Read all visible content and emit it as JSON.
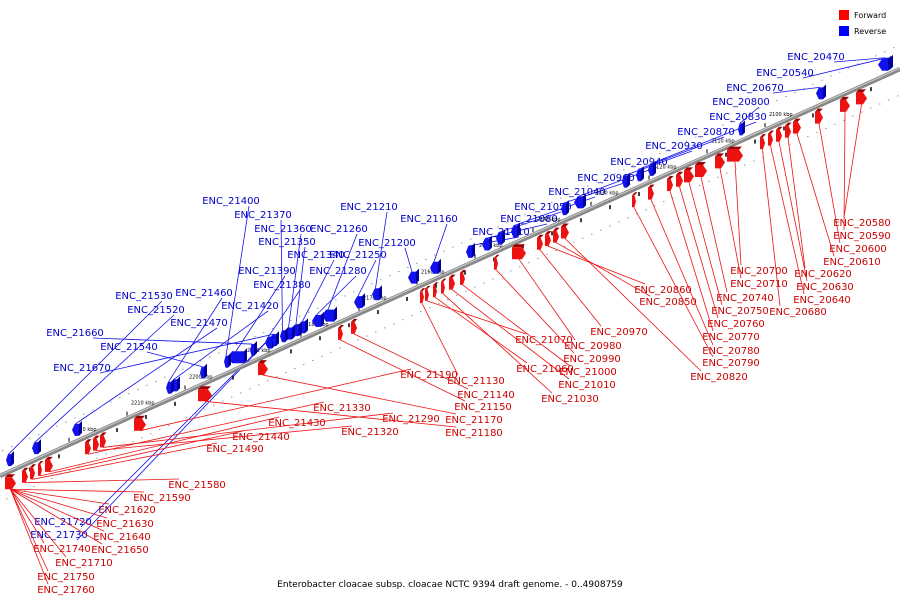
{
  "caption": "Enterobacter cloacae subsp. cloacae NCTC 9394 draft genome. - 0..4908759",
  "legend": [
    {
      "label": "Forward",
      "color": "#ff0000"
    },
    {
      "label": "Reverse",
      "color": "#0000ff"
    }
  ],
  "colors": {
    "forward": "#ee1111",
    "reverse": "#1111ee",
    "forward_label": "#cc0000",
    "reverse_label": "#0000cc"
  },
  "ticks": [
    "2100 kbp",
    "2110 kbp",
    "2120 kbp",
    "2130 kbp",
    "2140 kbp",
    "2150 kbp",
    "2160 kbp",
    "2170 kbp",
    "2180 kbp",
    "2190 kbp",
    "2200 kbp",
    "2210 kbp",
    "2220 kbp"
  ],
  "reverse_genes": [
    "ENC_20470",
    "ENC_20540",
    "ENC_20670",
    "ENC_20800",
    "ENC_20830",
    "ENC_20870",
    "ENC_20930",
    "ENC_20940",
    "ENC_20960",
    "ENC_21040",
    "ENC_21050",
    "ENC_21080",
    "ENC_21110",
    "ENC_21160",
    "ENC_21200",
    "ENC_21210",
    "ENC_21250",
    "ENC_21260",
    "ENC_21280",
    "ENC_21340",
    "ENC_21350",
    "ENC_21360",
    "ENC_21370",
    "ENC_21380",
    "ENC_21390",
    "ENC_21400",
    "ENC_21420",
    "ENC_21460",
    "ENC_21470",
    "ENC_21520",
    "ENC_21530",
    "ENC_21540",
    "ENC_21660",
    "ENC_21670",
    "ENC_21720",
    "ENC_21730"
  ],
  "forward_genes": [
    "ENC_20580",
    "ENC_20590",
    "ENC_20600",
    "ENC_20610",
    "ENC_20620",
    "ENC_20630",
    "ENC_20640",
    "ENC_20680",
    "ENC_20700",
    "ENC_20710",
    "ENC_20740",
    "ENC_20750",
    "ENC_20760",
    "ENC_20770",
    "ENC_20780",
    "ENC_20790",
    "ENC_20820",
    "ENC_20850",
    "ENC_20860",
    "ENC_20970",
    "ENC_20980",
    "ENC_20990",
    "ENC_21000",
    "ENC_21010",
    "ENC_21030",
    "ENC_21060",
    "ENC_21070",
    "ENC_21130",
    "ENC_21140",
    "ENC_21150",
    "ENC_21170",
    "ENC_21180",
    "ENC_21190",
    "ENC_21290",
    "ENC_21320",
    "ENC_21330",
    "ENC_21430",
    "ENC_21440",
    "ENC_21490",
    "ENC_21580",
    "ENC_21590",
    "ENC_21620",
    "ENC_21630",
    "ENC_21640",
    "ENC_21650",
    "ENC_21710",
    "ENC_21740",
    "ENC_21750",
    "ENC_21760"
  ]
}
